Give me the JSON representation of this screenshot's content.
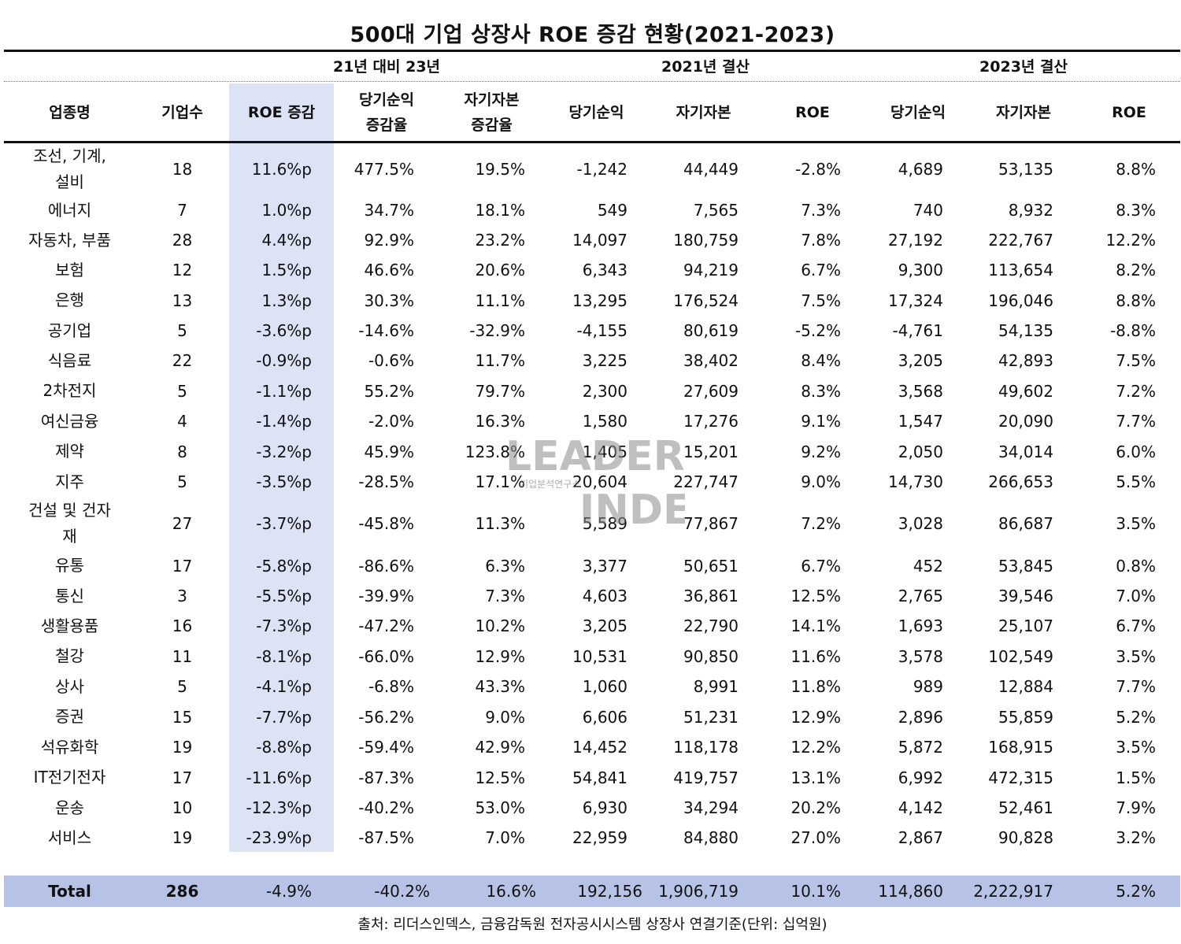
{
  "chart_data": {
    "type": "table",
    "title": "500대 기업 상장사 ROE 증감 현황(2021-2023)",
    "group_headers": [
      "21년 대비 23년",
      "2021년 결산",
      "2023년 결산"
    ],
    "columns": [
      "업종명",
      "기업수",
      "ROE 증감",
      "당기순익\n증감율",
      "자기자본\n증감율",
      "당기순익",
      "자기자본",
      "ROE",
      "당기순익",
      "자기자본",
      "ROE"
    ],
    "rows": [
      [
        "조선, 기계, 설비",
        "18",
        "11.6%p",
        "477.5%",
        "19.5%",
        "-1,242",
        "44,449",
        "-2.8%",
        "4,689",
        "53,135",
        "8.8%"
      ],
      [
        "에너지",
        "7",
        "1.0%p",
        "34.7%",
        "18.1%",
        "549",
        "7,565",
        "7.3%",
        "740",
        "8,932",
        "8.3%"
      ],
      [
        "자동차, 부품",
        "28",
        "4.4%p",
        "92.9%",
        "23.2%",
        "14,097",
        "180,759",
        "7.8%",
        "27,192",
        "222,767",
        "12.2%"
      ],
      [
        "보험",
        "12",
        "1.5%p",
        "46.6%",
        "20.6%",
        "6,343",
        "94,219",
        "6.7%",
        "9,300",
        "113,654",
        "8.2%"
      ],
      [
        "은행",
        "13",
        "1.3%p",
        "30.3%",
        "11.1%",
        "13,295",
        "176,524",
        "7.5%",
        "17,324",
        "196,046",
        "8.8%"
      ],
      [
        "공기업",
        "5",
        "-3.6%p",
        "-14.6%",
        "-32.9%",
        "-4,155",
        "80,619",
        "-5.2%",
        "-4,761",
        "54,135",
        "-8.8%"
      ],
      [
        "식음료",
        "22",
        "-0.9%p",
        "-0.6%",
        "11.7%",
        "3,225",
        "38,402",
        "8.4%",
        "3,205",
        "42,893",
        "7.5%"
      ],
      [
        "2차전지",
        "5",
        "-1.1%p",
        "55.2%",
        "79.7%",
        "2,300",
        "27,609",
        "8.3%",
        "3,568",
        "49,602",
        "7.2%"
      ],
      [
        "여신금융",
        "4",
        "-1.4%p",
        "-2.0%",
        "16.3%",
        "1,580",
        "17,276",
        "9.1%",
        "1,547",
        "20,090",
        "7.7%"
      ],
      [
        "제약",
        "8",
        "-3.2%p",
        "45.9%",
        "123.8%",
        "1,405",
        "15,201",
        "9.2%",
        "2,050",
        "34,014",
        "6.0%"
      ],
      [
        "지주",
        "5",
        "-3.5%p",
        "-28.5%",
        "17.1%",
        "20,604",
        "227,747",
        "9.0%",
        "14,730",
        "266,653",
        "5.5%"
      ],
      [
        "건설 및 건자재",
        "27",
        "-3.7%p",
        "-45.8%",
        "11.3%",
        "5,589",
        "77,867",
        "7.2%",
        "3,028",
        "86,687",
        "3.5%"
      ],
      [
        "유통",
        "17",
        "-5.8%p",
        "-86.6%",
        "6.3%",
        "3,377",
        "50,651",
        "6.7%",
        "452",
        "53,845",
        "0.8%"
      ],
      [
        "통신",
        "3",
        "-5.5%p",
        "-39.9%",
        "7.3%",
        "4,603",
        "36,861",
        "12.5%",
        "2,765",
        "39,546",
        "7.0%"
      ],
      [
        "생활용품",
        "16",
        "-7.3%p",
        "-47.2%",
        "10.2%",
        "3,205",
        "22,790",
        "14.1%",
        "1,693",
        "25,107",
        "6.7%"
      ],
      [
        "철강",
        "11",
        "-8.1%p",
        "-66.0%",
        "12.9%",
        "10,531",
        "90,850",
        "11.6%",
        "3,578",
        "102,549",
        "3.5%"
      ],
      [
        "상사",
        "5",
        "-4.1%p",
        "-6.8%",
        "43.3%",
        "1,060",
        "8,991",
        "11.8%",
        "989",
        "12,884",
        "7.7%"
      ],
      [
        "증권",
        "15",
        "-7.7%p",
        "-56.2%",
        "9.0%",
        "6,606",
        "51,231",
        "12.9%",
        "2,896",
        "55,859",
        "5.2%"
      ],
      [
        "석유화학",
        "19",
        "-8.8%p",
        "-59.4%",
        "42.9%",
        "14,452",
        "118,178",
        "12.2%",
        "5,872",
        "168,915",
        "3.5%"
      ],
      [
        "IT전기전자",
        "17",
        "-11.6%p",
        "-87.3%",
        "12.5%",
        "54,841",
        "419,757",
        "13.1%",
        "6,992",
        "472,315",
        "1.5%"
      ],
      [
        "운송",
        "10",
        "-12.3%p",
        "-40.2%",
        "53.0%",
        "6,930",
        "34,294",
        "20.2%",
        "4,142",
        "52,461",
        "7.9%"
      ],
      [
        "서비스",
        "19",
        "-23.9%p",
        "-87.5%",
        "7.0%",
        "22,959",
        "84,880",
        "27.0%",
        "2,867",
        "90,828",
        "3.2%"
      ]
    ],
    "total": [
      "Total",
      "286",
      "-4.9%",
      "-40.2%",
      "16.6%",
      "192,156",
      "1,906,719",
      "10.1%",
      "114,860",
      "2,222,917",
      "5.2%"
    ],
    "source": "출처: 리더스인덱스, 금융감독원 전자공시시스템 상장사 연결기준(단위: 십억원)",
    "watermark": {
      "line1": "LEADERS",
      "line2": "INDEX",
      "sub": "기업분석연구소"
    }
  },
  "colors": {
    "highlight_column": "#dbe3f4",
    "total_row": "#b6c3e6",
    "watermark": "#8a8a8a"
  }
}
